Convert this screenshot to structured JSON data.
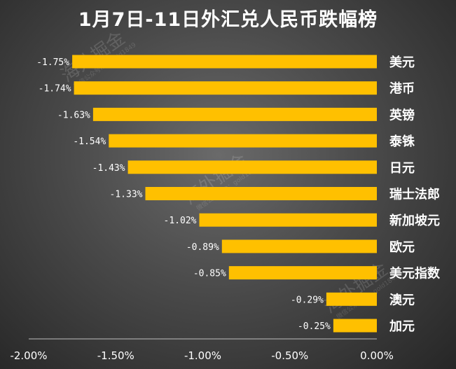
{
  "chart_data": {
    "type": "bar",
    "orientation": "horizontal",
    "title": "1月7日-11日外汇兑人民币跌幅榜",
    "categories": [
      "美元",
      "港币",
      "英镑",
      "泰铢",
      "日元",
      "瑞士法郎",
      "新加坡元",
      "欧元",
      "美元指数",
      "澳元",
      "加元"
    ],
    "values": [
      -1.75,
      -1.74,
      -1.63,
      -1.54,
      -1.43,
      -1.33,
      -1.02,
      -0.89,
      -0.85,
      -0.29,
      -0.25
    ],
    "value_labels": [
      "-1.75%",
      "-1.74%",
      "-1.63%",
      "-1.54%",
      "-1.43%",
      "-1.33%",
      "-1.02%",
      "-0.89%",
      "-0.85%",
      "-0.29%",
      "-0.25%"
    ],
    "xlim": [
      -2.0,
      0.0
    ],
    "xticks": [
      -2.0,
      -1.5,
      -1.0,
      -0.5,
      0.0
    ],
    "xtick_labels": [
      "-2.00%",
      "-1.50%",
      "-1.00%",
      "-0.50%",
      "0.00%"
    ],
    "xlabel": "",
    "ylabel": "",
    "grid": false,
    "bar_color": "#FFC000",
    "background_color": "#3a3a3a",
    "watermark": {
      "text": "海外掘金",
      "sub_text": "微信公众号ID：gold1849"
    }
  }
}
